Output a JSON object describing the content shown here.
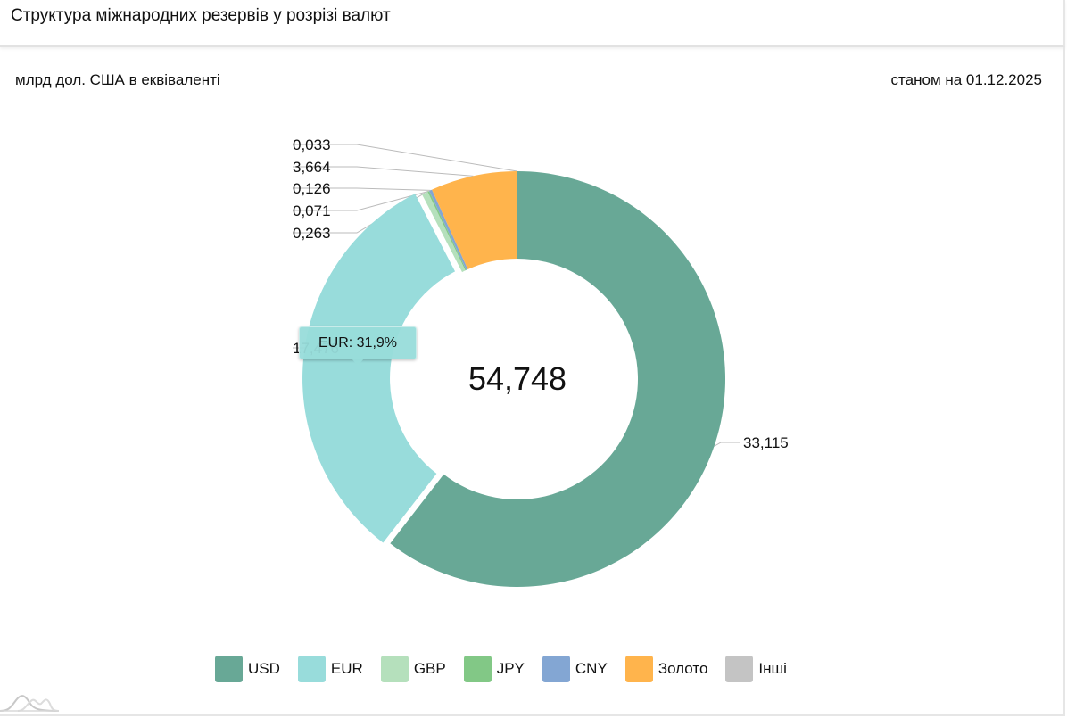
{
  "header": {
    "title": "Структура міжнародних резервів у розрізі валют"
  },
  "subtitle": {
    "unit": "млрд дол. США в еквіваленті",
    "date": "станом на 01.12.2025"
  },
  "tooltip": {
    "text": "EUR: 31,9%"
  },
  "chart_data": {
    "type": "pie",
    "donut": true,
    "center_label": "54,748",
    "slices": [
      {
        "name": "USD",
        "value": 33.115,
        "label": "33,115",
        "color": "#68a896"
      },
      {
        "name": "EUR",
        "value": 17.476,
        "label": "17,476",
        "color": "#98dcdb",
        "highlighted": true
      },
      {
        "name": "GBP",
        "value": 0.263,
        "label": "0,263",
        "color": "#b5e0bc"
      },
      {
        "name": "JPY",
        "value": 0.071,
        "label": "0,071",
        "color": "#82c886"
      },
      {
        "name": "CNY",
        "value": 0.126,
        "label": "0,126",
        "color": "#83a6d3"
      },
      {
        "name": "Золото",
        "value": 3.664,
        "label": "3,664",
        "color": "#ffb44c"
      },
      {
        "name": "Інші",
        "value": 0.033,
        "label": "0,033",
        "color": "#c4c4c4"
      }
    ],
    "legend_position": "bottom"
  }
}
